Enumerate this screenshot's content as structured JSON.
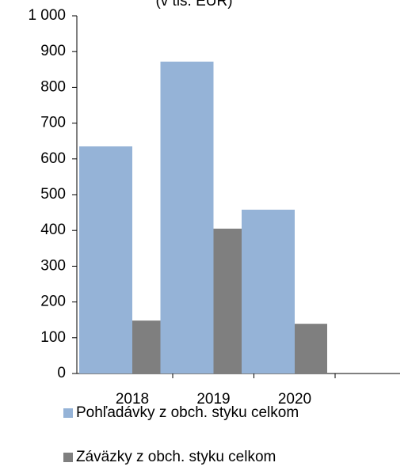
{
  "chart_data": {
    "type": "bar",
    "title": "(v tis. EUR)",
    "categories": [
      "2018",
      "2019",
      "2020"
    ],
    "series": [
      {
        "name": "Pohľadávky z obch. styku celkom",
        "color": "#95b3d7",
        "values": [
          635,
          872,
          458
        ]
      },
      {
        "name": "Záväzky z obch. styku celkom",
        "color": "#7f7f7f",
        "values": [
          148,
          405,
          139
        ]
      }
    ],
    "ylim": [
      0,
      1000
    ],
    "yticks": [
      0,
      100,
      200,
      300,
      400,
      500,
      600,
      700,
      800,
      900,
      {
        "value": 1000,
        "label": "1 000"
      }
    ],
    "legend": "bottom"
  }
}
